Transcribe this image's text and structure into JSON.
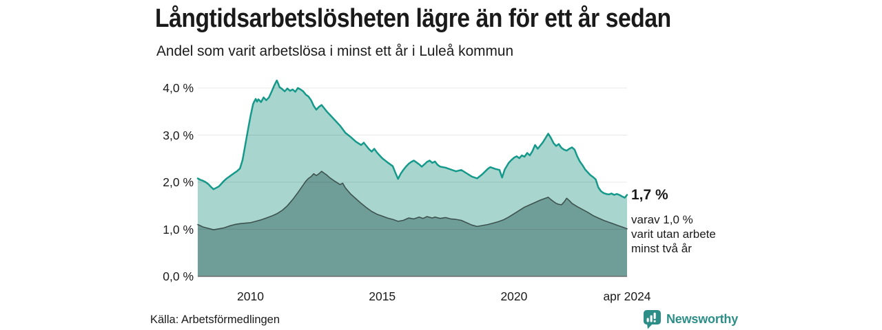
{
  "header": {
    "title": "Långtidsarbetslösheten lägre än för ett år sedan",
    "subtitle": "Andel som varit arbetslösa i minst ett år i Luleå kommun"
  },
  "annotation": {
    "headline": "1,7 %",
    "sub_lines": [
      "varav 1,0 %",
      "varit utan arbete",
      "minst två år"
    ]
  },
  "source": {
    "text": "Källa: Arbetsförmedlingen"
  },
  "branding": {
    "name": "Newsworthy",
    "icon": "bar-chart-speech-bubble"
  },
  "colors": {
    "accent_teal": "#14998a",
    "area_light": "#a8d5ce",
    "area_dark": "#6f9d98",
    "line_dark": "#3d534f",
    "grid": "rgba(0,0,0,0.09)",
    "axis": "#6e6e6e",
    "text": "#1a1a1a",
    "brand_teal": "#2d8e88"
  },
  "chart_data": {
    "type": "area",
    "title": "Långtidsarbetslösheten lägre än för ett år sedan",
    "subtitle": "Andel som varit arbetslösa i minst ett år i Luleå kommun",
    "unit": "%",
    "grid": "horizontal",
    "legend_position": "none",
    "x_domain": [
      2008.0,
      2024.29
    ],
    "ylim": [
      0,
      4.18
    ],
    "yticks": [
      {
        "value": 0,
        "label": "0,0 %"
      },
      {
        "value": 1,
        "label": "1,0 %"
      },
      {
        "value": 2,
        "label": "2,0 %"
      },
      {
        "value": 3,
        "label": "3,0 %"
      },
      {
        "value": 4,
        "label": "4,0 %"
      }
    ],
    "xticks": [
      {
        "value": 2010,
        "label": "2010"
      },
      {
        "value": 2015,
        "label": "2015"
      },
      {
        "value": 2020,
        "label": "2020"
      },
      {
        "value": 2024.29,
        "label": "apr 2024"
      }
    ],
    "series": [
      {
        "name": "Arbetslösa minst ett år",
        "end_label": "1,7 %",
        "line_color": "#14998a",
        "fill_color": "#a8d5ce",
        "line_width": 2.5,
        "points": [
          [
            2008.0,
            2.08
          ],
          [
            2008.1,
            2.05
          ],
          [
            2008.2,
            2.03
          ],
          [
            2008.3,
            2.0
          ],
          [
            2008.4,
            1.96
          ],
          [
            2008.5,
            1.9
          ],
          [
            2008.6,
            1.85
          ],
          [
            2008.7,
            1.88
          ],
          [
            2008.8,
            1.91
          ],
          [
            2008.9,
            1.97
          ],
          [
            2009.0,
            2.03
          ],
          [
            2009.1,
            2.08
          ],
          [
            2009.2,
            2.12
          ],
          [
            2009.3,
            2.16
          ],
          [
            2009.4,
            2.2
          ],
          [
            2009.5,
            2.24
          ],
          [
            2009.6,
            2.29
          ],
          [
            2009.7,
            2.47
          ],
          [
            2009.8,
            2.78
          ],
          [
            2009.9,
            3.1
          ],
          [
            2010.0,
            3.4
          ],
          [
            2010.1,
            3.66
          ],
          [
            2010.15,
            3.72
          ],
          [
            2010.2,
            3.77
          ],
          [
            2010.25,
            3.71
          ],
          [
            2010.3,
            3.76
          ],
          [
            2010.4,
            3.7
          ],
          [
            2010.5,
            3.8
          ],
          [
            2010.6,
            3.74
          ],
          [
            2010.7,
            3.8
          ],
          [
            2010.8,
            3.92
          ],
          [
            2010.9,
            4.05
          ],
          [
            2011.0,
            4.16
          ],
          [
            2011.05,
            4.1
          ],
          [
            2011.1,
            4.02
          ],
          [
            2011.2,
            3.98
          ],
          [
            2011.3,
            3.93
          ],
          [
            2011.4,
            3.99
          ],
          [
            2011.5,
            3.94
          ],
          [
            2011.6,
            3.97
          ],
          [
            2011.7,
            3.92
          ],
          [
            2011.8,
            4.0
          ],
          [
            2011.9,
            3.97
          ],
          [
            2012.0,
            3.93
          ],
          [
            2012.1,
            3.86
          ],
          [
            2012.2,
            3.82
          ],
          [
            2012.3,
            3.74
          ],
          [
            2012.4,
            3.62
          ],
          [
            2012.5,
            3.54
          ],
          [
            2012.6,
            3.6
          ],
          [
            2012.7,
            3.64
          ],
          [
            2012.8,
            3.57
          ],
          [
            2012.9,
            3.5
          ],
          [
            2013.0,
            3.44
          ],
          [
            2013.2,
            3.32
          ],
          [
            2013.4,
            3.2
          ],
          [
            2013.6,
            3.05
          ],
          [
            2013.8,
            2.96
          ],
          [
            2014.0,
            2.86
          ],
          [
            2014.2,
            2.79
          ],
          [
            2014.3,
            2.84
          ],
          [
            2014.5,
            2.7
          ],
          [
            2014.6,
            2.65
          ],
          [
            2014.7,
            2.71
          ],
          [
            2014.8,
            2.63
          ],
          [
            2014.9,
            2.57
          ],
          [
            2015.0,
            2.51
          ],
          [
            2015.2,
            2.42
          ],
          [
            2015.4,
            2.34
          ],
          [
            2015.5,
            2.2
          ],
          [
            2015.6,
            2.07
          ],
          [
            2015.7,
            2.18
          ],
          [
            2015.8,
            2.26
          ],
          [
            2015.9,
            2.33
          ],
          [
            2016.0,
            2.39
          ],
          [
            2016.1,
            2.43
          ],
          [
            2016.2,
            2.46
          ],
          [
            2016.3,
            2.42
          ],
          [
            2016.4,
            2.38
          ],
          [
            2016.5,
            2.33
          ],
          [
            2016.6,
            2.38
          ],
          [
            2016.7,
            2.43
          ],
          [
            2016.8,
            2.46
          ],
          [
            2016.9,
            2.41
          ],
          [
            2017.0,
            2.44
          ],
          [
            2017.1,
            2.37
          ],
          [
            2017.2,
            2.33
          ],
          [
            2017.4,
            2.31
          ],
          [
            2017.6,
            2.27
          ],
          [
            2017.8,
            2.23
          ],
          [
            2018.0,
            2.26
          ],
          [
            2018.2,
            2.19
          ],
          [
            2018.4,
            2.12
          ],
          [
            2018.6,
            2.08
          ],
          [
            2018.8,
            2.17
          ],
          [
            2019.0,
            2.28
          ],
          [
            2019.1,
            2.32
          ],
          [
            2019.3,
            2.28
          ],
          [
            2019.45,
            2.26
          ],
          [
            2019.55,
            2.1
          ],
          [
            2019.65,
            2.27
          ],
          [
            2019.8,
            2.41
          ],
          [
            2019.9,
            2.47
          ],
          [
            2020.0,
            2.52
          ],
          [
            2020.1,
            2.55
          ],
          [
            2020.2,
            2.51
          ],
          [
            2020.3,
            2.57
          ],
          [
            2020.4,
            2.54
          ],
          [
            2020.5,
            2.62
          ],
          [
            2020.6,
            2.57
          ],
          [
            2020.7,
            2.66
          ],
          [
            2020.8,
            2.79
          ],
          [
            2020.9,
            2.71
          ],
          [
            2021.0,
            2.78
          ],
          [
            2021.1,
            2.85
          ],
          [
            2021.2,
            2.94
          ],
          [
            2021.3,
            3.03
          ],
          [
            2021.4,
            2.94
          ],
          [
            2021.5,
            2.83
          ],
          [
            2021.6,
            2.77
          ],
          [
            2021.7,
            2.81
          ],
          [
            2021.8,
            2.73
          ],
          [
            2021.9,
            2.69
          ],
          [
            2022.0,
            2.67
          ],
          [
            2022.1,
            2.71
          ],
          [
            2022.2,
            2.74
          ],
          [
            2022.3,
            2.69
          ],
          [
            2022.4,
            2.55
          ],
          [
            2022.5,
            2.44
          ],
          [
            2022.6,
            2.36
          ],
          [
            2022.7,
            2.27
          ],
          [
            2022.8,
            2.21
          ],
          [
            2022.9,
            2.15
          ],
          [
            2023.0,
            2.11
          ],
          [
            2023.1,
            2.06
          ],
          [
            2023.2,
            1.89
          ],
          [
            2023.3,
            1.81
          ],
          [
            2023.4,
            1.77
          ],
          [
            2023.5,
            1.75
          ],
          [
            2023.6,
            1.74
          ],
          [
            2023.7,
            1.76
          ],
          [
            2023.8,
            1.73
          ],
          [
            2023.9,
            1.75
          ],
          [
            2024.0,
            1.73
          ],
          [
            2024.1,
            1.7
          ],
          [
            2024.2,
            1.67
          ],
          [
            2024.29,
            1.73
          ]
        ]
      },
      {
        "name": "varav utan arbete minst två år",
        "end_label": "1,0 %",
        "line_color": "#3d534f",
        "fill_color": "#6f9d98",
        "line_width": 1.6,
        "points": [
          [
            2008.0,
            1.1
          ],
          [
            2008.2,
            1.05
          ],
          [
            2008.4,
            1.02
          ],
          [
            2008.6,
            0.99
          ],
          [
            2008.8,
            1.01
          ],
          [
            2009.0,
            1.03
          ],
          [
            2009.2,
            1.07
          ],
          [
            2009.4,
            1.1
          ],
          [
            2009.6,
            1.12
          ],
          [
            2009.8,
            1.13
          ],
          [
            2010.0,
            1.14
          ],
          [
            2010.2,
            1.17
          ],
          [
            2010.4,
            1.2
          ],
          [
            2010.6,
            1.24
          ],
          [
            2010.8,
            1.28
          ],
          [
            2011.0,
            1.33
          ],
          [
            2011.2,
            1.4
          ],
          [
            2011.4,
            1.5
          ],
          [
            2011.6,
            1.63
          ],
          [
            2011.8,
            1.78
          ],
          [
            2012.0,
            1.94
          ],
          [
            2012.1,
            2.02
          ],
          [
            2012.2,
            2.08
          ],
          [
            2012.3,
            2.12
          ],
          [
            2012.4,
            2.18
          ],
          [
            2012.5,
            2.14
          ],
          [
            2012.6,
            2.18
          ],
          [
            2012.7,
            2.23
          ],
          [
            2012.8,
            2.19
          ],
          [
            2012.9,
            2.15
          ],
          [
            2013.0,
            2.1
          ],
          [
            2013.2,
            2.02
          ],
          [
            2013.4,
            1.95
          ],
          [
            2013.5,
            1.98
          ],
          [
            2013.6,
            1.88
          ],
          [
            2013.8,
            1.75
          ],
          [
            2014.0,
            1.65
          ],
          [
            2014.2,
            1.55
          ],
          [
            2014.4,
            1.46
          ],
          [
            2014.6,
            1.38
          ],
          [
            2014.8,
            1.32
          ],
          [
            2015.0,
            1.28
          ],
          [
            2015.2,
            1.24
          ],
          [
            2015.4,
            1.21
          ],
          [
            2015.6,
            1.17
          ],
          [
            2015.8,
            1.19
          ],
          [
            2016.0,
            1.24
          ],
          [
            2016.2,
            1.22
          ],
          [
            2016.4,
            1.26
          ],
          [
            2016.55,
            1.23
          ],
          [
            2016.7,
            1.27
          ],
          [
            2016.9,
            1.24
          ],
          [
            2017.0,
            1.26
          ],
          [
            2017.2,
            1.23
          ],
          [
            2017.4,
            1.25
          ],
          [
            2017.6,
            1.22
          ],
          [
            2017.8,
            1.21
          ],
          [
            2018.0,
            1.19
          ],
          [
            2018.2,
            1.14
          ],
          [
            2018.4,
            1.09
          ],
          [
            2018.6,
            1.06
          ],
          [
            2018.8,
            1.08
          ],
          [
            2019.0,
            1.1
          ],
          [
            2019.2,
            1.13
          ],
          [
            2019.4,
            1.16
          ],
          [
            2019.6,
            1.2
          ],
          [
            2019.8,
            1.26
          ],
          [
            2020.0,
            1.33
          ],
          [
            2020.2,
            1.4
          ],
          [
            2020.4,
            1.47
          ],
          [
            2020.6,
            1.52
          ],
          [
            2020.8,
            1.57
          ],
          [
            2021.0,
            1.62
          ],
          [
            2021.2,
            1.66
          ],
          [
            2021.3,
            1.68
          ],
          [
            2021.4,
            1.63
          ],
          [
            2021.5,
            1.59
          ],
          [
            2021.6,
            1.55
          ],
          [
            2021.7,
            1.53
          ],
          [
            2021.8,
            1.52
          ],
          [
            2021.9,
            1.58
          ],
          [
            2022.0,
            1.66
          ],
          [
            2022.1,
            1.61
          ],
          [
            2022.2,
            1.55
          ],
          [
            2022.4,
            1.48
          ],
          [
            2022.6,
            1.42
          ],
          [
            2022.8,
            1.36
          ],
          [
            2023.0,
            1.29
          ],
          [
            2023.2,
            1.24
          ],
          [
            2023.4,
            1.19
          ],
          [
            2023.6,
            1.15
          ],
          [
            2023.8,
            1.11
          ],
          [
            2024.0,
            1.07
          ],
          [
            2024.15,
            1.04
          ],
          [
            2024.29,
            1.01
          ]
        ]
      }
    ]
  }
}
